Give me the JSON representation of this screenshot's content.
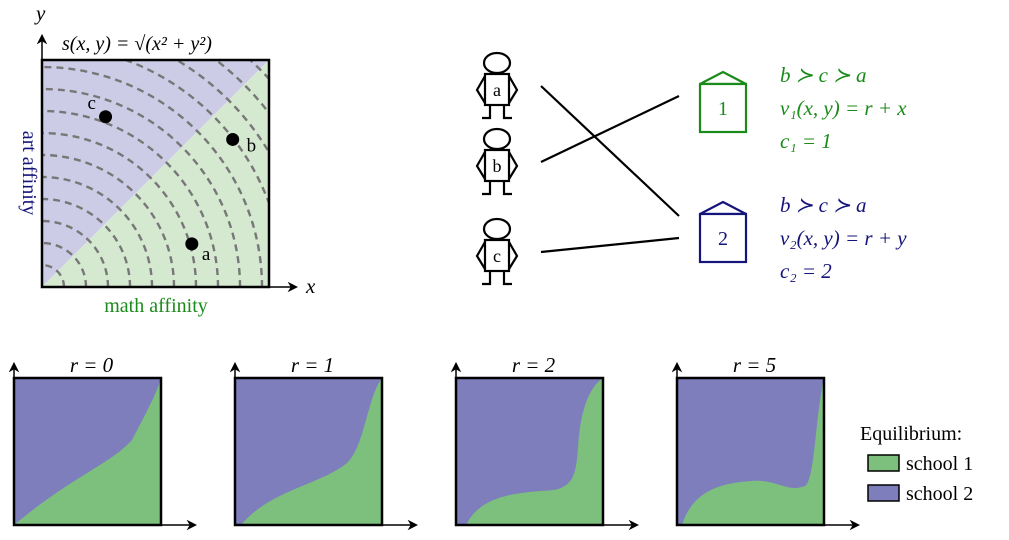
{
  "top_panel": {
    "axis_x": "x",
    "axis_y": "y",
    "function_label": "s(x, y) = √(x² + y²)",
    "xlabel": "math affinity",
    "ylabel": "art affinity",
    "points": [
      {
        "label": "c",
        "x": 0.28,
        "y": 0.75
      },
      {
        "label": "b",
        "x": 0.84,
        "y": 0.65
      },
      {
        "label": "a",
        "x": 0.66,
        "y": 0.19
      }
    ]
  },
  "students": [
    {
      "label": "a"
    },
    {
      "label": "b"
    },
    {
      "label": "c"
    }
  ],
  "matching": [
    {
      "student": "a",
      "school": "2"
    },
    {
      "student": "b",
      "school": "1"
    },
    {
      "student": "c",
      "school": "2"
    }
  ],
  "schools": [
    {
      "id": "1",
      "color": "#1a8a1a",
      "preference": "b ≻ c ≻ a",
      "valuation": "v₁(x, y) = r + x",
      "capacity": "c₁ = 1"
    },
    {
      "id": "2",
      "color": "#14147a",
      "preference": "b ≻ c ≻ a",
      "valuation": "v₂(x, y) = r + y",
      "capacity": "c₂ = 2"
    }
  ],
  "equilibria": [
    {
      "title": "r = 0"
    },
    {
      "title": "r = 1"
    },
    {
      "title": "r = 2"
    },
    {
      "title": "r = 5"
    }
  ],
  "legend": {
    "title": "Equilibrium:",
    "items": [
      {
        "label": "school 1",
        "color": "#7dbf7d"
      },
      {
        "label": "school 2",
        "color": "#7e7ebd"
      }
    ]
  },
  "colors": {
    "math": "#1a8a1a",
    "art": "#14147a",
    "region1_light": "#d4e9d0",
    "region2_light": "#cdcce6",
    "region1": "#7dbf7d",
    "region2": "#7e7ebd"
  }
}
